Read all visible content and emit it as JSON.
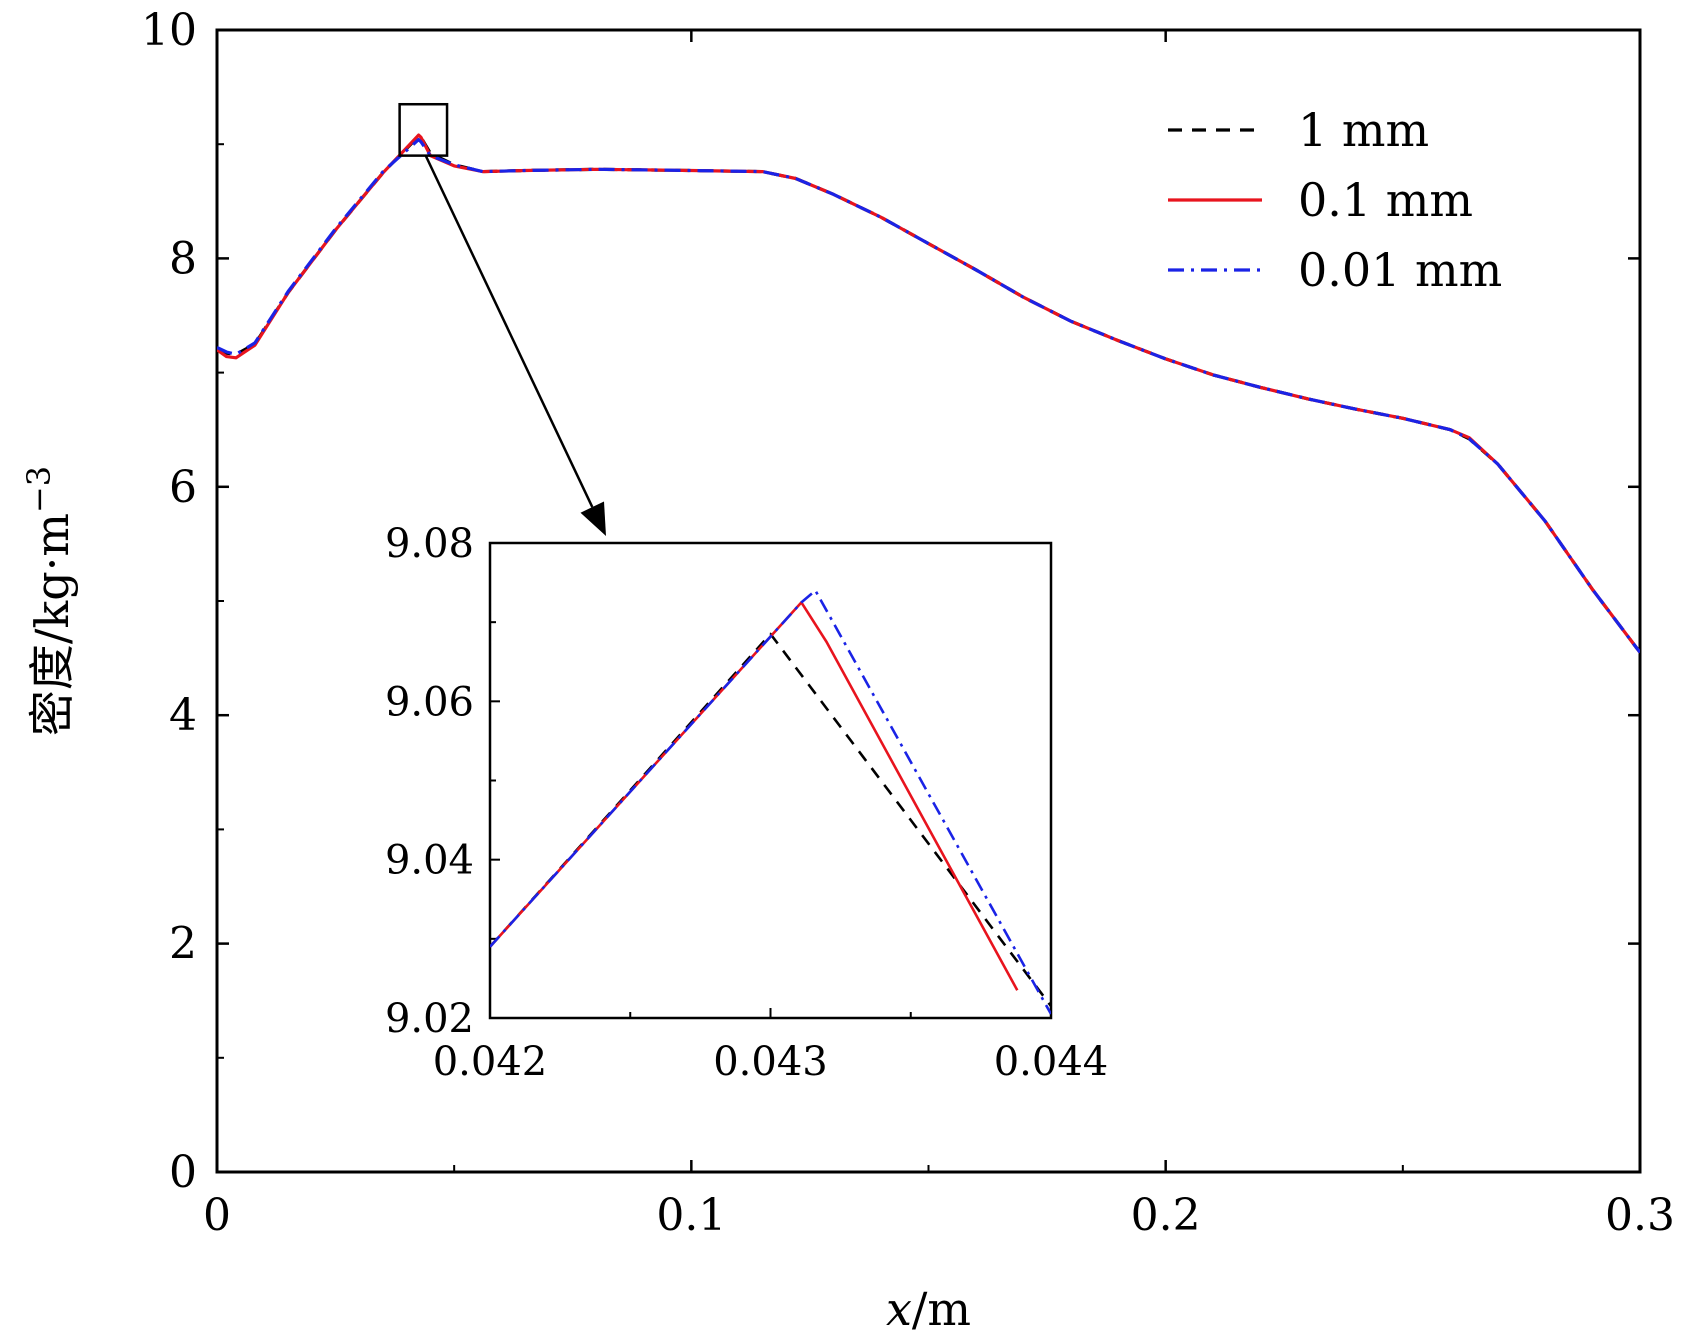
{
  "chart_data": {
    "type": "line",
    "main": {
      "xlabel_var": "x",
      "xlabel_unit": "/m",
      "ylabel": "密度/kg·m",
      "ylabel_exp": "−3",
      "xlim": [
        0,
        0.3
      ],
      "ylim": [
        0,
        10
      ],
      "xticks": [
        {
          "v": 0,
          "label": "0"
        },
        {
          "v": 0.1,
          "label": "0.1"
        },
        {
          "v": 0.2,
          "label": "0.2"
        },
        {
          "v": 0.3,
          "label": "0.3"
        }
      ],
      "xminor": [
        0.05,
        0.15,
        0.25
      ],
      "yticks": [
        {
          "v": 0,
          "label": "0"
        },
        {
          "v": 2,
          "label": "2"
        },
        {
          "v": 4,
          "label": "4"
        },
        {
          "v": 6,
          "label": "6"
        },
        {
          "v": 8,
          "label": "8"
        },
        {
          "v": 10,
          "label": "10"
        }
      ],
      "yminor": [
        1,
        3,
        5,
        7,
        9
      ],
      "series": [
        {
          "name": "1 mm",
          "color": "#000000",
          "dash": "14,10",
          "x": [
            0,
            0.002,
            0.004,
            0.008,
            0.015,
            0.025,
            0.035,
            0.0425,
            0.043,
            0.045,
            0.05,
            0.056,
            0.065,
            0.08,
            0.1,
            0.115,
            0.122,
            0.13,
            0.14,
            0.15,
            0.16,
            0.17,
            0.18,
            0.19,
            0.2,
            0.21,
            0.22,
            0.23,
            0.24,
            0.25,
            0.26,
            0.264,
            0.27,
            0.28,
            0.29,
            0.3
          ],
          "y": [
            7.2,
            7.17,
            7.16,
            7.25,
            7.7,
            8.25,
            8.75,
            9.07,
            9.06,
            8.92,
            8.82,
            8.76,
            8.77,
            8.78,
            8.77,
            8.76,
            8.7,
            8.56,
            8.36,
            8.13,
            7.9,
            7.66,
            7.45,
            7.28,
            7.12,
            6.98,
            6.87,
            6.77,
            6.68,
            6.6,
            6.5,
            6.42,
            6.2,
            5.7,
            5.1,
            4.55
          ]
        },
        {
          "name": "0.1 mm",
          "color": "#e8141e",
          "dash": "",
          "x": [
            0,
            0.002,
            0.004,
            0.008,
            0.015,
            0.025,
            0.035,
            0.0425,
            0.043,
            0.045,
            0.05,
            0.056,
            0.065,
            0.08,
            0.1,
            0.115,
            0.122,
            0.13,
            0.14,
            0.15,
            0.16,
            0.17,
            0.18,
            0.19,
            0.2,
            0.21,
            0.22,
            0.23,
            0.24,
            0.25,
            0.26,
            0.264,
            0.27,
            0.28,
            0.29,
            0.3
          ],
          "y": [
            7.2,
            7.14,
            7.13,
            7.24,
            7.7,
            8.25,
            8.75,
            9.08,
            9.06,
            8.9,
            8.81,
            8.76,
            8.77,
            8.78,
            8.77,
            8.76,
            8.7,
            8.56,
            8.36,
            8.13,
            7.9,
            7.66,
            7.45,
            7.28,
            7.12,
            6.98,
            6.87,
            6.77,
            6.68,
            6.6,
            6.5,
            6.43,
            6.2,
            5.7,
            5.1,
            4.55
          ]
        },
        {
          "name": "0.01 mm",
          "color": "#1a23e6",
          "dash": "16,7,3,7",
          "x": [
            0,
            0.002,
            0.004,
            0.008,
            0.015,
            0.025,
            0.035,
            0.0425,
            0.043,
            0.045,
            0.05,
            0.056,
            0.065,
            0.08,
            0.1,
            0.115,
            0.122,
            0.13,
            0.14,
            0.15,
            0.16,
            0.17,
            0.18,
            0.19,
            0.2,
            0.21,
            0.22,
            0.23,
            0.24,
            0.25,
            0.26,
            0.264,
            0.27,
            0.28,
            0.29,
            0.3
          ],
          "y": [
            7.22,
            7.18,
            7.16,
            7.26,
            7.71,
            8.26,
            8.76,
            9.04,
            9.02,
            8.9,
            8.82,
            8.76,
            8.77,
            8.78,
            8.77,
            8.76,
            8.7,
            8.56,
            8.36,
            8.13,
            7.9,
            7.66,
            7.45,
            7.28,
            7.12,
            6.98,
            6.87,
            6.77,
            6.68,
            6.6,
            6.5,
            6.42,
            6.2,
            5.7,
            5.1,
            4.55
          ]
        }
      ],
      "zoom_box": {
        "x0": 0.0385,
        "x1": 0.0485,
        "y0": 8.9,
        "y1": 9.35
      },
      "legend_position": "top-right"
    },
    "inset": {
      "xlim": [
        0.042,
        0.044
      ],
      "ylim": [
        9.02,
        9.08
      ],
      "xticks": [
        {
          "v": 0.042,
          "label": "0.042"
        },
        {
          "v": 0.043,
          "label": "0.043"
        },
        {
          "v": 0.044,
          "label": "0.044"
        }
      ],
      "xminor": [
        0.0425,
        0.0435
      ],
      "yticks": [
        {
          "v": 9.02,
          "label": "9.02"
        },
        {
          "v": 9.04,
          "label": "9.04"
        },
        {
          "v": 9.06,
          "label": "9.06"
        },
        {
          "v": 9.08,
          "label": "9.08"
        }
      ],
      "yminor": [
        9.03,
        9.05,
        9.07
      ],
      "series": [
        {
          "name": "1 mm",
          "color": "#000000",
          "dash": "12,9",
          "x": [
            0.042,
            0.043,
            0.044
          ],
          "y": [
            9.029,
            9.0685,
            9.0215
          ]
        },
        {
          "name": "0.1 mm",
          "color": "#e8141e",
          "dash": "",
          "x": [
            0.042,
            0.04311,
            0.0432,
            0.04388
          ],
          "y": [
            9.029,
            9.0725,
            9.0675,
            9.0235
          ]
        },
        {
          "name": "0.01 mm",
          "color": "#1a23e6",
          "dash": "14,6,3,6",
          "x": [
            0.042,
            0.04311,
            0.04316,
            0.044
          ],
          "y": [
            9.029,
            9.0725,
            9.074,
            9.0205
          ]
        }
      ]
    }
  }
}
